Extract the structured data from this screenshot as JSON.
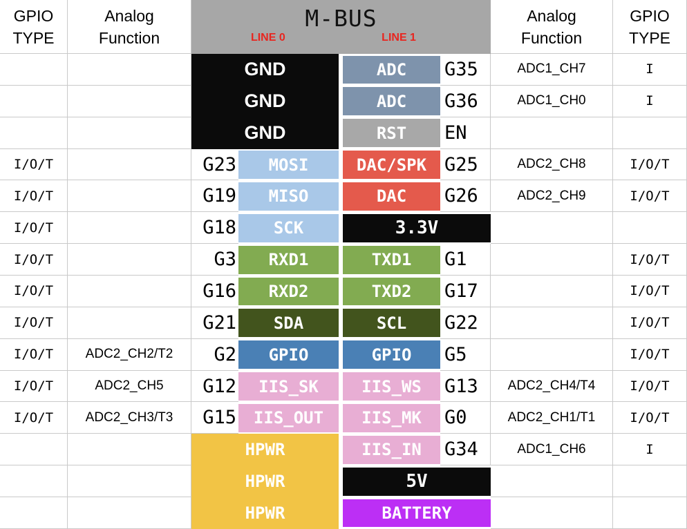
{
  "header": {
    "gpio_type_l1": "GPIO",
    "gpio_type_l2": "TYPE",
    "analog_l1": "Analog",
    "analog_l2": "Function",
    "bus_title": "M-BUS",
    "line0": "LINE 0",
    "line1": "LINE 1"
  },
  "colors": {
    "black": "#0b0b0b",
    "slate": "#7e93ac",
    "gray": "#a8a8a8",
    "lightblue": "#a9c8e8",
    "red": "#e45a4c",
    "green": "#82ab51",
    "darkgreen": "#42541d",
    "blue": "#4a80b5",
    "pink": "#e8aed4",
    "yellow": "#f2c445",
    "purple": "#bc2ff5",
    "header_gray": "#a7a7a7",
    "line_red": "#e8251f",
    "grid": "#c9c9c9",
    "pin_text": "#ffffff"
  },
  "rows": [
    {
      "left_type": "",
      "left_analog": "",
      "line0": {
        "label": "GND",
        "color": "black",
        "merge": true,
        "gap": false,
        "font": "sans"
      },
      "line1": {
        "label": "ADC",
        "color": "slate",
        "merge": false,
        "gap": true
      },
      "right_g": "G35",
      "right_analog": "ADC1_CH7",
      "right_type": "I"
    },
    {
      "left_type": "",
      "left_analog": "",
      "line0": {
        "label": "GND",
        "color": "black",
        "merge": true,
        "gap": false,
        "font": "sans"
      },
      "line1": {
        "label": "ADC",
        "color": "slate",
        "merge": false,
        "gap": true
      },
      "right_g": "G36",
      "right_analog": "ADC1_CH0",
      "right_type": "I"
    },
    {
      "left_type": "",
      "left_analog": "",
      "line0": {
        "label": "GND",
        "color": "black",
        "merge": true,
        "gap": false,
        "font": "sans"
      },
      "line1": {
        "label": "RST",
        "color": "gray",
        "merge": false,
        "gap": true
      },
      "right_g": "EN",
      "right_analog": "",
      "right_type": ""
    },
    {
      "left_type": "I/O/T",
      "left_analog": "",
      "left_g": "G23",
      "line0": {
        "label": "MOSI",
        "color": "lightblue",
        "merge": false,
        "gap": true
      },
      "line1": {
        "label": "DAC/SPK",
        "color": "red",
        "merge": false,
        "gap": true
      },
      "right_g": "G25",
      "right_analog": "ADC2_CH8",
      "right_type": "I/O/T"
    },
    {
      "left_type": "I/O/T",
      "left_analog": "",
      "left_g": "G19",
      "line0": {
        "label": "MISO",
        "color": "lightblue",
        "merge": false,
        "gap": true
      },
      "line1": {
        "label": "DAC",
        "color": "red",
        "merge": false,
        "gap": true
      },
      "right_g": "G26",
      "right_analog": "ADC2_CH9",
      "right_type": "I/O/T"
    },
    {
      "left_type": "I/O/T",
      "left_analog": "",
      "left_g": "G18",
      "line0": {
        "label": "SCK",
        "color": "lightblue",
        "merge": false,
        "gap": true
      },
      "line1": {
        "label": "3.3V",
        "color": "black",
        "merge": true,
        "gap": true,
        "size": "lg"
      },
      "right_analog": "",
      "right_type": ""
    },
    {
      "left_type": "I/O/T",
      "left_analog": "",
      "left_g": "G3",
      "line0": {
        "label": "RXD1",
        "color": "green",
        "merge": false,
        "gap": true
      },
      "line1": {
        "label": "TXD1",
        "color": "green",
        "merge": false,
        "gap": true
      },
      "right_g": "G1",
      "right_analog": "",
      "right_type": "I/O/T"
    },
    {
      "left_type": "I/O/T",
      "left_analog": "",
      "left_g": "G16",
      "line0": {
        "label": "RXD2",
        "color": "green",
        "merge": false,
        "gap": true
      },
      "line1": {
        "label": "TXD2",
        "color": "green",
        "merge": false,
        "gap": true
      },
      "right_g": "G17",
      "right_analog": "",
      "right_type": "I/O/T"
    },
    {
      "left_type": "I/O/T",
      "left_analog": "",
      "left_g": "G21",
      "line0": {
        "label": "SDA",
        "color": "darkgreen",
        "merge": false,
        "gap": true
      },
      "line1": {
        "label": "SCL",
        "color": "darkgreen",
        "merge": false,
        "gap": true
      },
      "right_g": "G22",
      "right_analog": "",
      "right_type": "I/O/T"
    },
    {
      "left_type": "I/O/T",
      "left_analog": "ADC2_CH2/T2",
      "left_g": "G2",
      "line0": {
        "label": "GPIO",
        "color": "blue",
        "merge": false,
        "gap": true
      },
      "line1": {
        "label": "GPIO",
        "color": "blue",
        "merge": false,
        "gap": true
      },
      "right_g": "G5",
      "right_analog": "",
      "right_type": "I/O/T"
    },
    {
      "left_type": "I/O/T",
      "left_analog": "ADC2_CH5",
      "left_g": "G12",
      "line0": {
        "label": "IIS_SK",
        "color": "pink",
        "merge": false,
        "gap": true
      },
      "line1": {
        "label": "IIS_WS",
        "color": "pink",
        "merge": false,
        "gap": true
      },
      "right_g": "G13",
      "right_analog": "ADC2_CH4/T4",
      "right_type": "I/O/T"
    },
    {
      "left_type": "I/O/T",
      "left_analog": "ADC2_CH3/T3",
      "left_g": "G15",
      "line0": {
        "label": "IIS_OUT",
        "color": "pink",
        "merge": false,
        "gap": true
      },
      "line1": {
        "label": "IIS_MK",
        "color": "pink",
        "merge": false,
        "gap": true
      },
      "right_g": "G0",
      "right_analog": "ADC2_CH1/T1",
      "right_type": "I/O/T"
    },
    {
      "left_type": "",
      "left_analog": "",
      "line0": {
        "label": "HPWR",
        "color": "yellow",
        "merge": true,
        "gap": false
      },
      "line1": {
        "label": "IIS_IN",
        "color": "pink",
        "merge": false,
        "gap": true
      },
      "right_g": "G34",
      "right_analog": "ADC1_CH6",
      "right_type": "I"
    },
    {
      "left_type": "",
      "left_analog": "",
      "line0": {
        "label": "HPWR",
        "color": "yellow",
        "merge": true,
        "gap": false
      },
      "line1": {
        "label": "5V",
        "color": "black",
        "merge": true,
        "gap": true,
        "size": "lg"
      },
      "right_analog": "",
      "right_type": ""
    },
    {
      "left_type": "",
      "left_analog": "",
      "line0": {
        "label": "HPWR",
        "color": "yellow",
        "merge": true,
        "gap": false
      },
      "line1": {
        "label": "BATTERY",
        "color": "purple",
        "merge": true,
        "gap": true
      },
      "right_analog": "",
      "right_type": ""
    }
  ]
}
